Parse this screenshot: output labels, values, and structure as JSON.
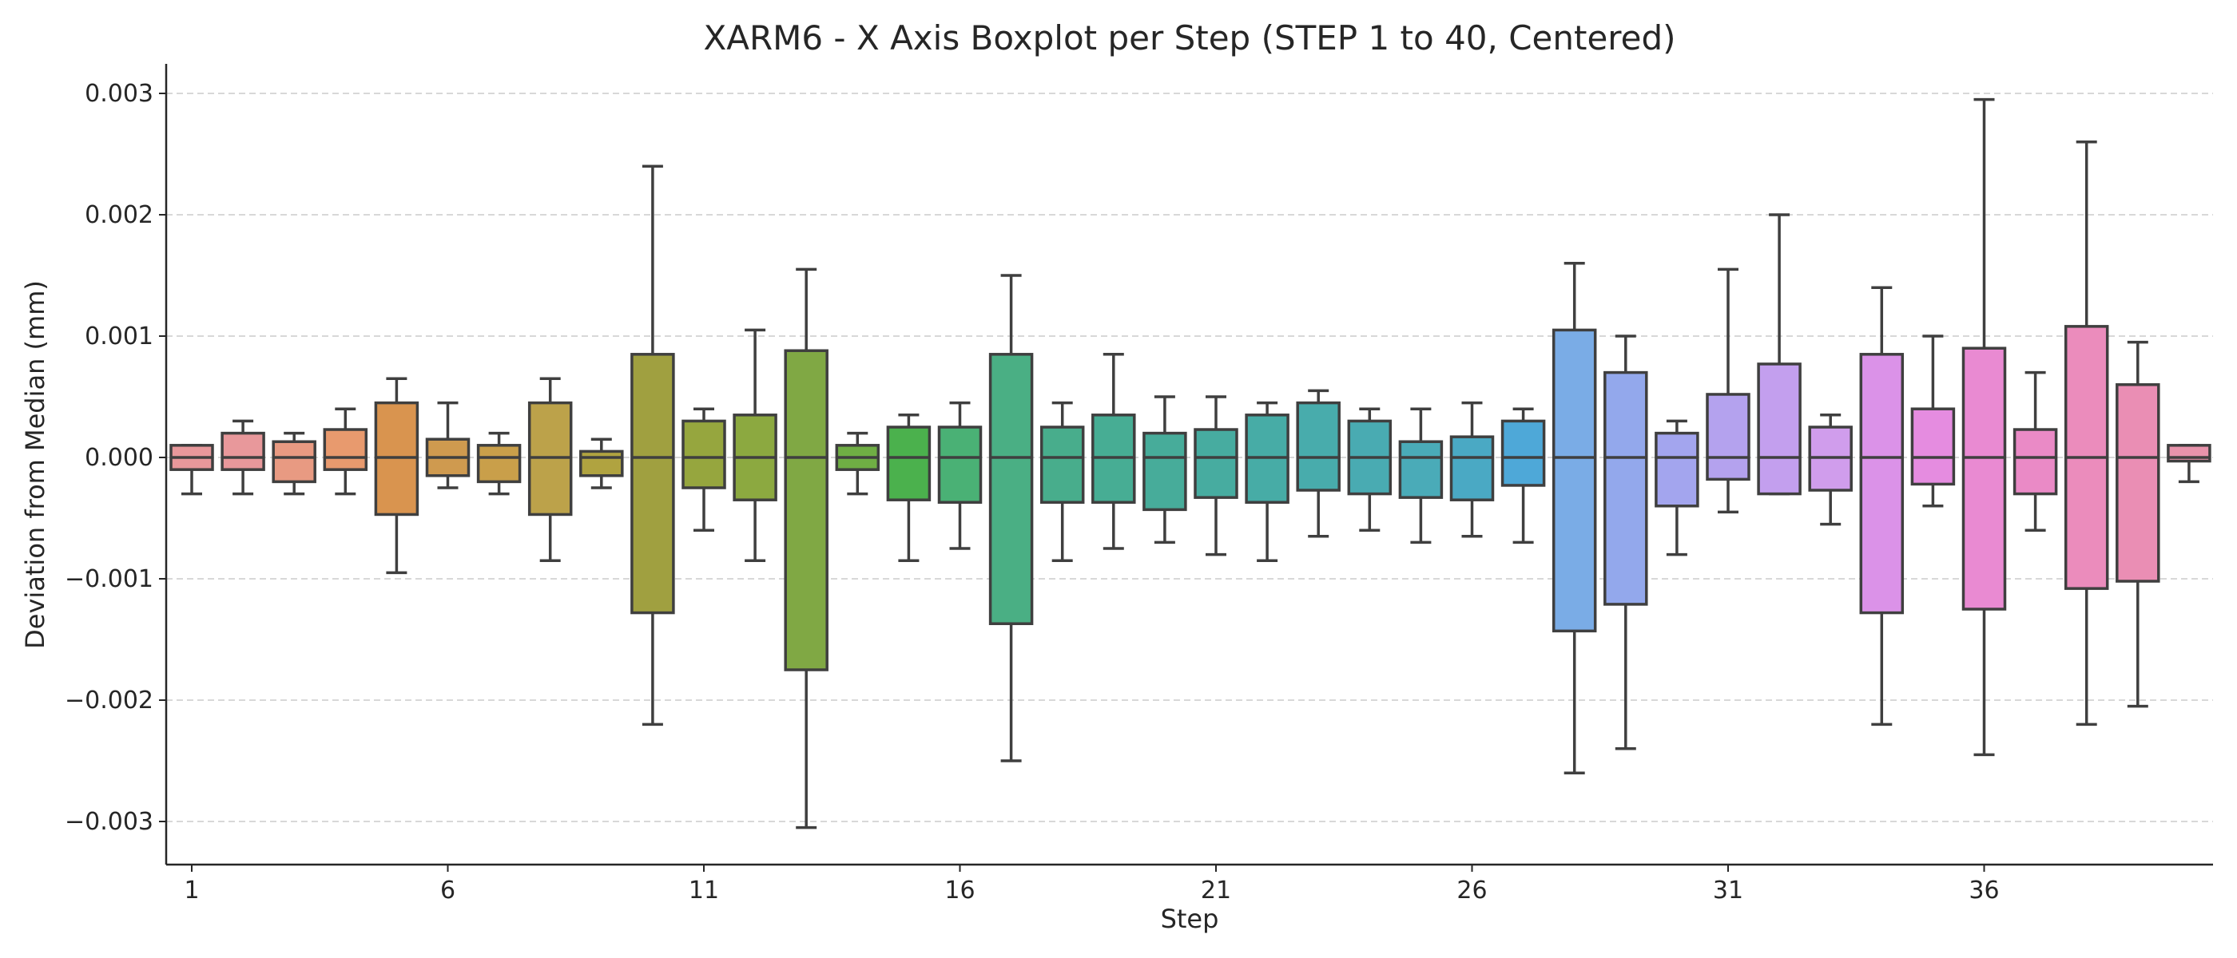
{
  "chart_data": {
    "type": "boxplot",
    "title": "XARM6 - X Axis Boxplot per Step (STEP 1 to 40, Centered)",
    "xlabel": "Step",
    "ylabel": "Deviation from Median (mm)",
    "ylim": [
      -0.00335,
      0.00325
    ],
    "grid": "y-dashed",
    "categories": [
      1,
      2,
      3,
      4,
      5,
      6,
      7,
      8,
      9,
      10,
      11,
      12,
      13,
      14,
      15,
      16,
      17,
      18,
      19,
      20,
      21,
      22,
      23,
      24,
      25,
      26,
      27,
      28,
      29,
      30,
      31,
      32,
      33,
      34,
      35,
      36,
      37,
      38,
      39,
      40
    ],
    "xticks": [
      1,
      6,
      11,
      16,
      21,
      26,
      31,
      36
    ],
    "yticks": [
      {
        "value": 0.003,
        "label": "0.003"
      },
      {
        "value": 0.002,
        "label": "0.002"
      },
      {
        "value": 0.001,
        "label": "0.001"
      },
      {
        "value": 0.0,
        "label": "0.000"
      },
      {
        "value": -0.001,
        "label": "−0.001"
      },
      {
        "value": -0.002,
        "label": "−0.002"
      },
      {
        "value": -0.003,
        "label": "−0.003"
      }
    ],
    "boxes": [
      {
        "step": 1,
        "whisker_low": -0.0003,
        "q1": -0.0001,
        "median": 0.0,
        "q3": 0.0001,
        "whisker_high": 0.0001,
        "color": "#e8989b"
      },
      {
        "step": 2,
        "whisker_low": -0.0003,
        "q1": -0.0001,
        "median": 0.0,
        "q3": 0.0002,
        "whisker_high": 0.0003,
        "color": "#e8989b"
      },
      {
        "step": 3,
        "whisker_low": -0.0003,
        "q1": -0.0002,
        "median": 0.0,
        "q3": 0.00013,
        "whisker_high": 0.0002,
        "color": "#e89a82"
      },
      {
        "step": 4,
        "whisker_low": -0.0003,
        "q1": -0.0001,
        "median": 0.0,
        "q3": 0.00023,
        "whisker_high": 0.0004,
        "color": "#e89a6e"
      },
      {
        "step": 5,
        "whisker_low": -0.00095,
        "q1": -0.00047,
        "median": 0.0,
        "q3": 0.00045,
        "whisker_high": 0.00065,
        "color": "#d9944f"
      },
      {
        "step": 6,
        "whisker_low": -0.00025,
        "q1": -0.00015,
        "median": 0.0,
        "q3": 0.00015,
        "whisker_high": 0.00045,
        "color": "#cf9a4f"
      },
      {
        "step": 7,
        "whisker_low": -0.0003,
        "q1": -0.0002,
        "median": 0.0,
        "q3": 0.0001,
        "whisker_high": 0.0002,
        "color": "#c99f4a"
      },
      {
        "step": 8,
        "whisker_low": -0.00085,
        "q1": -0.00047,
        "median": 0.0,
        "q3": 0.00045,
        "whisker_high": 0.00065,
        "color": "#bca24a"
      },
      {
        "step": 9,
        "whisker_low": -0.00025,
        "q1": -0.00015,
        "median": 0.0,
        "q3": 5e-05,
        "whisker_high": 0.00015,
        "color": "#b0a340"
      },
      {
        "step": 10,
        "whisker_low": -0.0022,
        "q1": -0.00128,
        "median": 0.0,
        "q3": 0.00085,
        "whisker_high": 0.0024,
        "color": "#a0a040"
      },
      {
        "step": 11,
        "whisker_low": -0.0006,
        "q1": -0.00025,
        "median": 0.0,
        "q3": 0.0003,
        "whisker_high": 0.0004,
        "color": "#96a63e"
      },
      {
        "step": 12,
        "whisker_low": -0.00085,
        "q1": -0.00035,
        "median": 0.0,
        "q3": 0.00035,
        "whisker_high": 0.00105,
        "color": "#8ca940"
      },
      {
        "step": 13,
        "whisker_low": -0.00305,
        "q1": -0.00175,
        "median": 0.0,
        "q3": 0.00088,
        "whisker_high": 0.00155,
        "color": "#80a844"
      },
      {
        "step": 14,
        "whisker_low": -0.0003,
        "q1": -0.0001,
        "median": 0.0,
        "q3": 0.0001,
        "whisker_high": 0.0002,
        "color": "#6fae44"
      },
      {
        "step": 15,
        "whisker_low": -0.00085,
        "q1": -0.00035,
        "median": 0.0,
        "q3": 0.00025,
        "whisker_high": 0.00035,
        "color": "#4bb14d"
      },
      {
        "step": 16,
        "whisker_low": -0.00075,
        "q1": -0.00037,
        "median": 0.0,
        "q3": 0.00025,
        "whisker_high": 0.00045,
        "color": "#4ab175"
      },
      {
        "step": 17,
        "whisker_low": -0.0025,
        "q1": -0.00137,
        "median": 0.0,
        "q3": 0.00085,
        "whisker_high": 0.0015,
        "color": "#4aaf84"
      },
      {
        "step": 18,
        "whisker_low": -0.00085,
        "q1": -0.00037,
        "median": 0.0,
        "q3": 0.00025,
        "whisker_high": 0.00045,
        "color": "#48ad8c"
      },
      {
        "step": 19,
        "whisker_low": -0.00075,
        "q1": -0.00037,
        "median": 0.0,
        "q3": 0.00035,
        "whisker_high": 0.00085,
        "color": "#47ad94"
      },
      {
        "step": 20,
        "whisker_low": -0.0007,
        "q1": -0.00043,
        "median": 0.0,
        "q3": 0.0002,
        "whisker_high": 0.0005,
        "color": "#47ac9a"
      },
      {
        "step": 21,
        "whisker_low": -0.0008,
        "q1": -0.00033,
        "median": 0.0,
        "q3": 0.00023,
        "whisker_high": 0.0005,
        "color": "#47aca0"
      },
      {
        "step": 22,
        "whisker_low": -0.00085,
        "q1": -0.00037,
        "median": 0.0,
        "q3": 0.00035,
        "whisker_high": 0.00045,
        "color": "#47aca6"
      },
      {
        "step": 23,
        "whisker_low": -0.00065,
        "q1": -0.00027,
        "median": 0.0,
        "q3": 0.00045,
        "whisker_high": 0.00055,
        "color": "#48acac"
      },
      {
        "step": 24,
        "whisker_low": -0.0006,
        "q1": -0.0003,
        "median": 0.0,
        "q3": 0.0003,
        "whisker_high": 0.0004,
        "color": "#49abb2"
      },
      {
        "step": 25,
        "whisker_low": -0.0007,
        "q1": -0.00033,
        "median": 0.0,
        "q3": 0.00013,
        "whisker_high": 0.0004,
        "color": "#4aabb8"
      },
      {
        "step": 26,
        "whisker_low": -0.00065,
        "q1": -0.00035,
        "median": 0.0,
        "q3": 0.00017,
        "whisker_high": 0.00045,
        "color": "#4aa9c4"
      },
      {
        "step": 27,
        "whisker_low": -0.0007,
        "q1": -0.00023,
        "median": 0.0,
        "q3": 0.0003,
        "whisker_high": 0.0004,
        "color": "#4ea8d8"
      },
      {
        "step": 28,
        "whisker_low": -0.0026,
        "q1": -0.00143,
        "median": 0.0,
        "q3": 0.00105,
        "whisker_high": 0.0016,
        "color": "#7aace6"
      },
      {
        "step": 29,
        "whisker_low": -0.0024,
        "q1": -0.00121,
        "median": 0.0,
        "q3": 0.0007,
        "whisker_high": 0.001,
        "color": "#93a8ec"
      },
      {
        "step": 30,
        "whisker_low": -0.0008,
        "q1": -0.0004,
        "median": 0.0,
        "q3": 0.0002,
        "whisker_high": 0.0003,
        "color": "#a3a5ee"
      },
      {
        "step": 31,
        "whisker_low": -0.00045,
        "q1": -0.00018,
        "median": 0.0,
        "q3": 0.00052,
        "whisker_high": 0.00155,
        "color": "#b4a2ee"
      },
      {
        "step": 32,
        "whisker_low": -0.0003,
        "q1": -0.0003,
        "median": 0.0,
        "q3": 0.00077,
        "whisker_high": 0.002,
        "color": "#c39fee"
      },
      {
        "step": 33,
        "whisker_low": -0.00055,
        "q1": -0.00027,
        "median": 0.0,
        "q3": 0.00025,
        "whisker_high": 0.00035,
        "color": "#d09dec"
      },
      {
        "step": 34,
        "whisker_low": -0.0022,
        "q1": -0.00128,
        "median": 0.0,
        "q3": 0.00085,
        "whisker_high": 0.0014,
        "color": "#db92e8"
      },
      {
        "step": 35,
        "whisker_low": -0.0004,
        "q1": -0.00022,
        "median": 0.0,
        "q3": 0.0004,
        "whisker_high": 0.001,
        "color": "#e58ce0"
      },
      {
        "step": 36,
        "whisker_low": -0.00245,
        "q1": -0.00125,
        "median": 0.0,
        "q3": 0.0009,
        "whisker_high": 0.00295,
        "color": "#e98ad2"
      },
      {
        "step": 37,
        "whisker_low": -0.0006,
        "q1": -0.0003,
        "median": 0.0,
        "q3": 0.00023,
        "whisker_high": 0.0007,
        "color": "#ea8ac6"
      },
      {
        "step": 38,
        "whisker_low": -0.0022,
        "q1": -0.00108,
        "median": 0.0,
        "q3": 0.00108,
        "whisker_high": 0.0026,
        "color": "#eb8cbc"
      },
      {
        "step": 39,
        "whisker_low": -0.00205,
        "q1": -0.00102,
        "median": 0.0,
        "q3": 0.0006,
        "whisker_high": 0.00095,
        "color": "#ea8eb4"
      },
      {
        "step": 40,
        "whisker_low": -0.0002,
        "q1": -3e-05,
        "median": 0.0,
        "q3": 0.0001,
        "whisker_high": 0.0001,
        "color": "#e893ab"
      }
    ]
  }
}
